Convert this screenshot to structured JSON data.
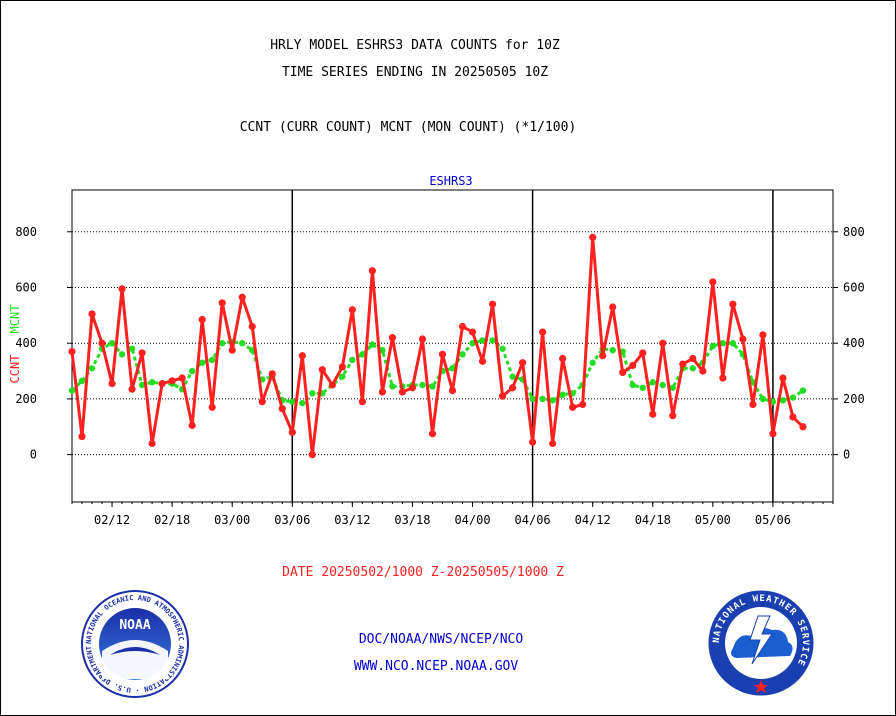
{
  "header": {
    "line1": "HRLY MODEL ESHRS3 DATA COUNTS for 10Z",
    "line2": "TIME SERIES ENDING IN 20250505 10Z",
    "line3": "CCNT (CURR COUNT) MCNT (MON COUNT) (*1/100)"
  },
  "footer": {
    "date_range": "DATE 20250502/1000 Z-20250505/1000 Z",
    "org": "DOC/NOAA/NWS/NCEP/NCO",
    "url": "WWW.NCO.NCEP.NOAA.GOV"
  },
  "logos": {
    "noaa_text": "NOAA",
    "noaa_ring_text": "NATIONAL OCEANIC AND ATMOSPHERIC ADMINISTRATION · U.S. DEPARTMENT OF COMMERCE ·",
    "nws_ring_text": "NATIONAL WEATHER SERVICE"
  },
  "colors": {
    "ccnt": "#ff2020",
    "mcnt": "#22dd22",
    "title": "#0000cc",
    "footer_red": "#ff2020",
    "footer_blue": "#0000cc"
  },
  "chart_data": {
    "type": "line",
    "title": "ESHRS3",
    "ylabel_ccnt": "CCNT",
    "ylabel_mcnt": "MCNT",
    "ylim": [
      -170,
      950
    ],
    "yticks": [
      0,
      200,
      400,
      600,
      800
    ],
    "grid": "dotted horizontal",
    "x_tick_labels": [
      "02/12",
      "02/18",
      "03/00",
      "03/06",
      "03/12",
      "03/18",
      "04/00",
      "04/06",
      "04/12",
      "04/18",
      "05/00",
      "05/06"
    ],
    "x_tick_index": [
      4,
      10,
      16,
      22,
      28,
      34,
      40,
      46,
      52,
      58,
      64,
      70
    ],
    "day_boundaries_index": [
      22,
      46,
      70
    ],
    "x_range": [
      0,
      76
    ],
    "series": [
      {
        "name": "CCNT",
        "values": [
          370,
          65,
          505,
          400,
          255,
          595,
          235,
          365,
          40,
          255,
          265,
          275,
          105,
          485,
          170,
          545,
          375,
          565,
          460,
          190,
          290,
          165,
          80,
          355,
          0,
          305,
          250,
          315,
          520,
          190,
          660,
          225,
          420,
          225,
          240,
          415,
          75,
          360,
          230,
          460,
          440,
          335,
          540,
          210,
          240,
          330,
          45,
          440,
          40,
          345,
          170,
          180,
          780,
          355,
          530,
          295,
          320,
          365,
          145,
          400,
          140,
          325,
          345,
          300,
          620,
          275,
          540,
          415,
          180,
          430,
          75,
          275,
          135,
          100
        ]
      },
      {
        "name": "MCNT",
        "values": [
          230,
          265,
          310,
          380,
          400,
          360,
          380,
          250,
          260,
          255,
          255,
          235,
          300,
          330,
          340,
          400,
          405,
          400,
          375,
          270,
          280,
          195,
          190,
          185,
          220,
          220,
          250,
          280,
          340,
          360,
          395,
          375,
          245,
          245,
          250,
          250,
          245,
          300,
          310,
          360,
          400,
          410,
          410,
          380,
          280,
          270,
          200,
          200,
          195,
          215,
          220,
          250,
          330,
          380,
          375,
          370,
          250,
          240,
          260,
          250,
          240,
          310,
          310,
          330,
          390,
          400,
          400,
          360,
          260,
          200,
          190,
          195,
          205,
          230
        ]
      }
    ]
  }
}
